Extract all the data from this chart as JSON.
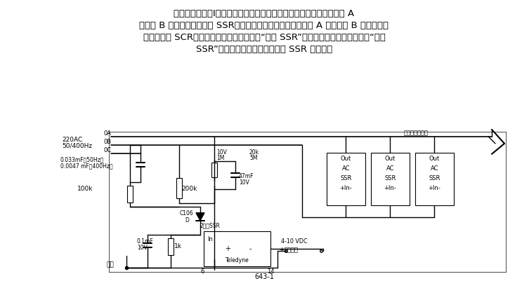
{
  "title_text": "相序检测器电路Ⅰ。该电路可以防止错误的相序对负载造成损害。只有 A",
  "para_line1": "相超前 B 相时，控制电源的 SSR（固态继电器）才会接通。如果 A 相落后于 B 相，输入电",
  "para_line2": "流消失，使 SCR（可控确开关整流元件）和“禁止 SSR”关断，直到相序反转为止。“禁止",
  "para_line3": "SSR”用于维持输入与控制电源的 SSR 的隔离。",
  "fig_label": "643-1",
  "phase_label": "相位敏感的负载",
  "background": "#ffffff",
  "text_color": "#000000",
  "line_color": "#000000"
}
